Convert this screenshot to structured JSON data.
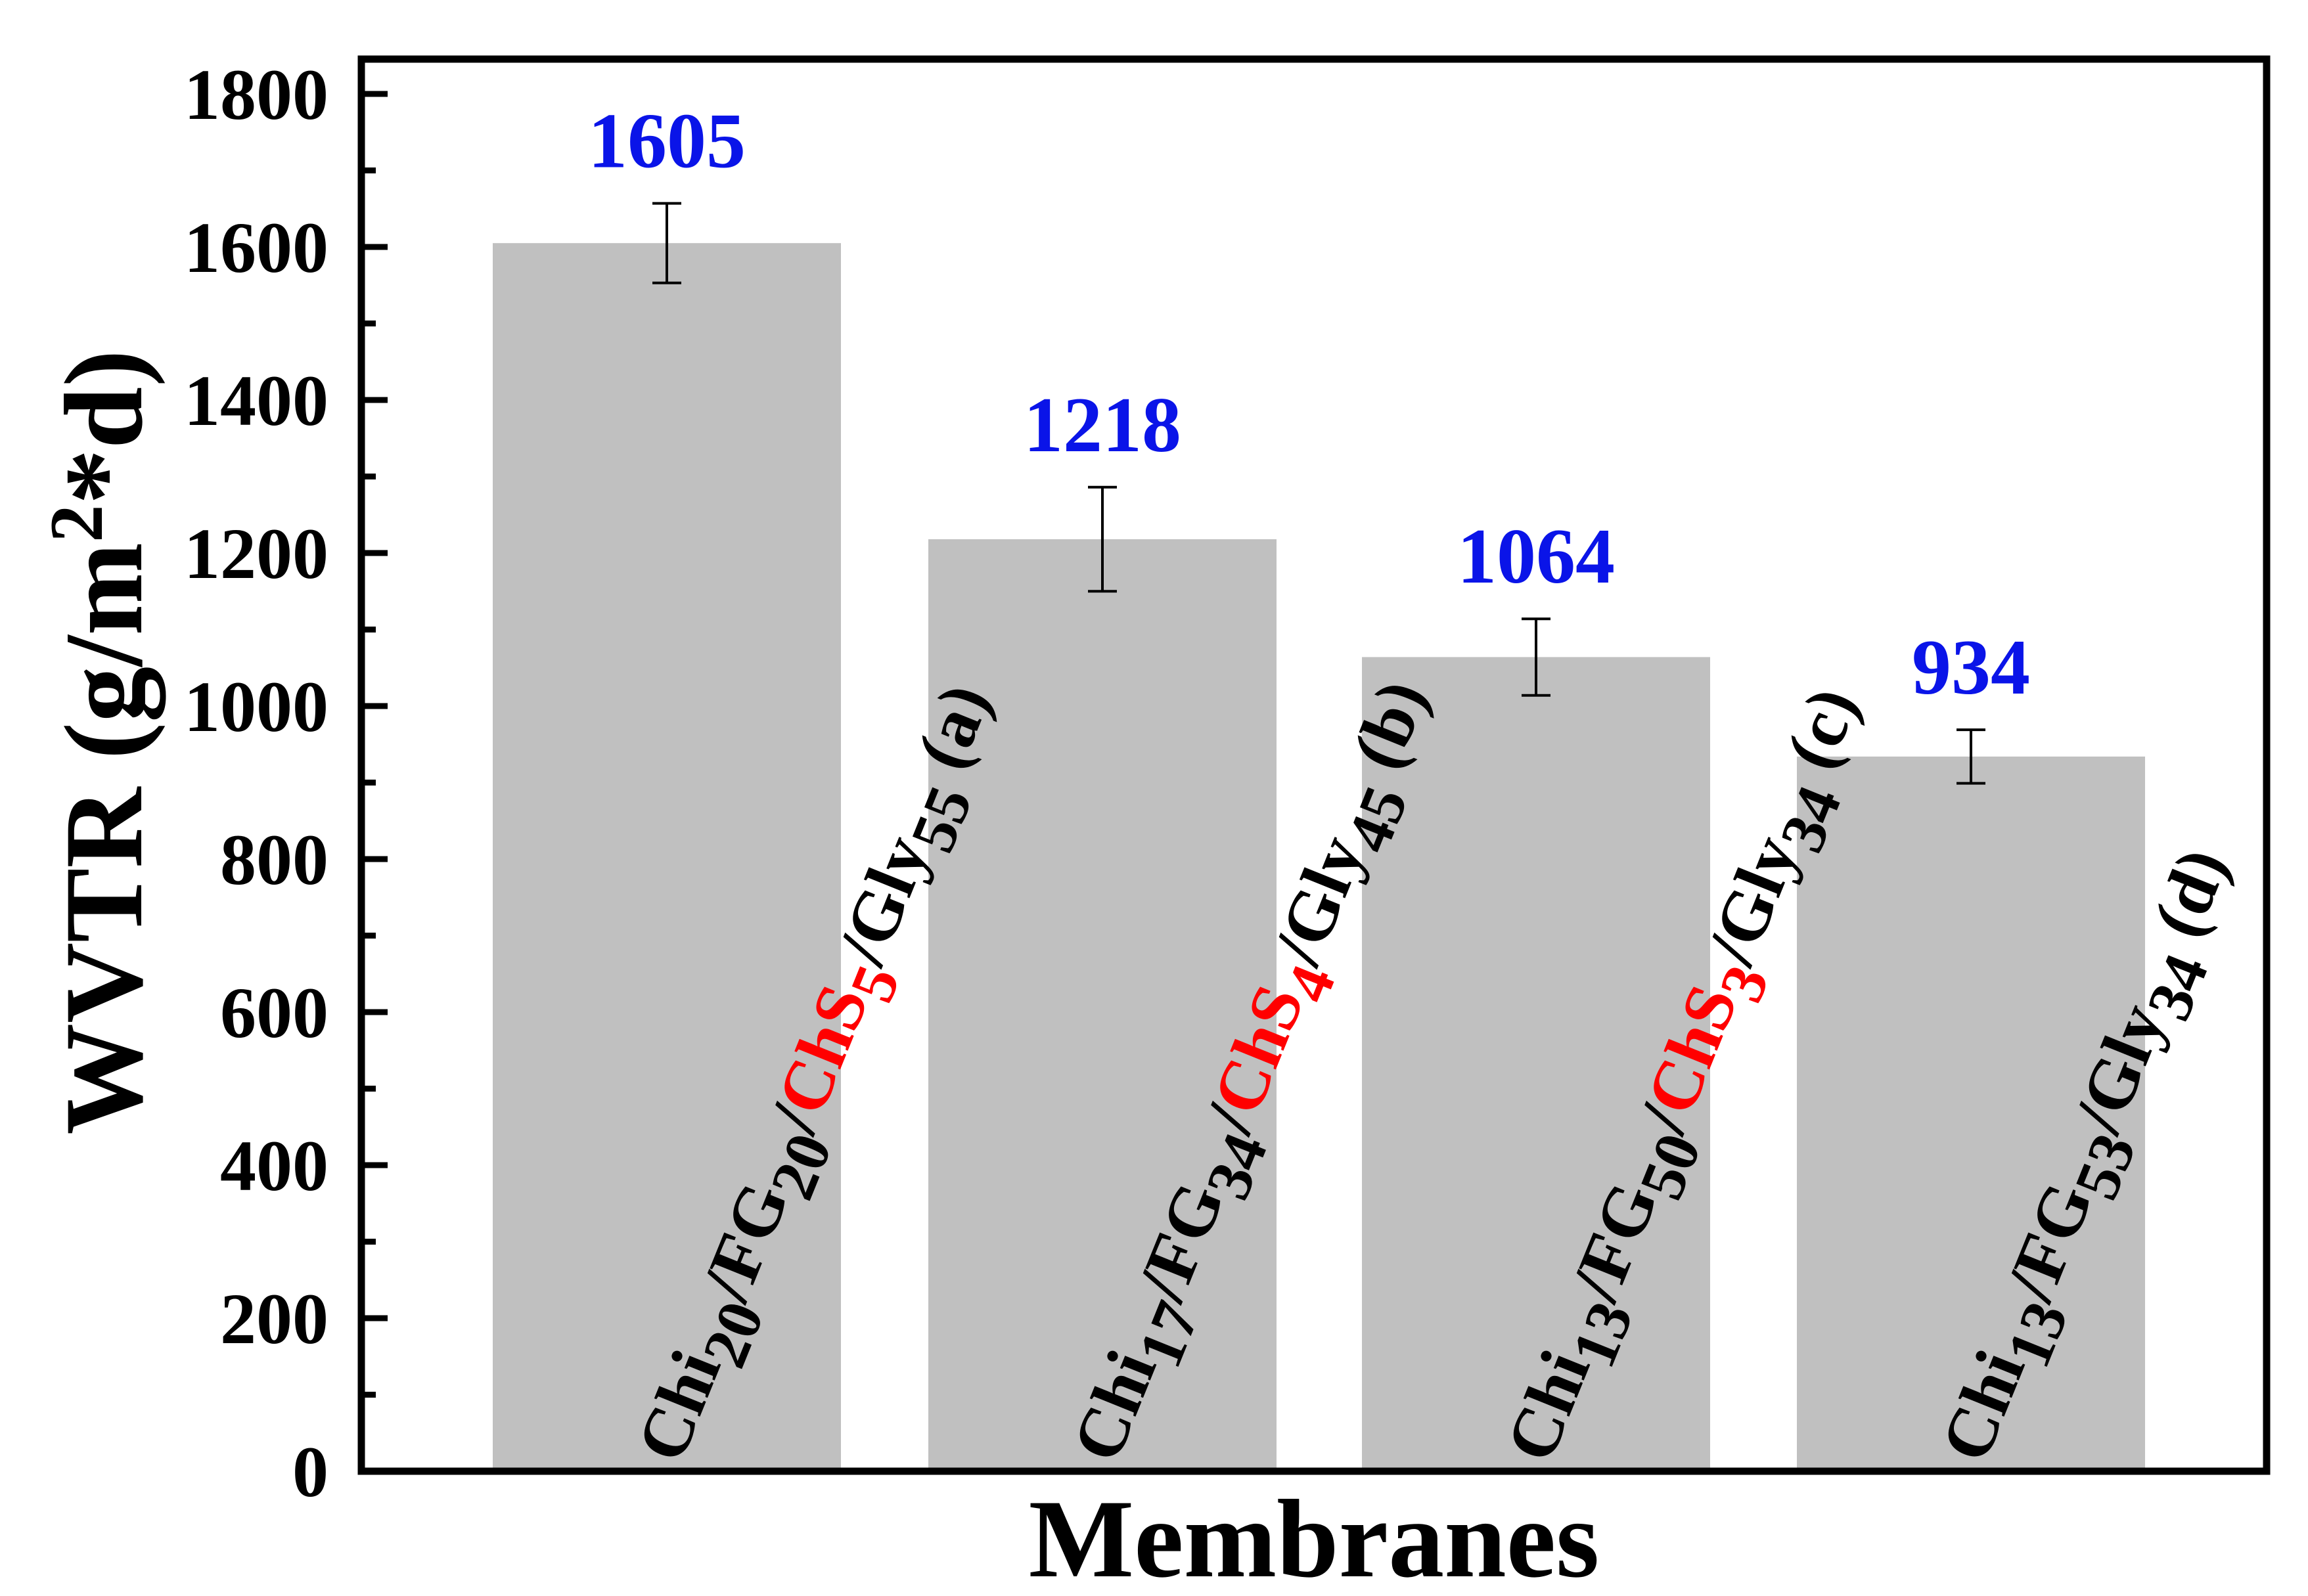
{
  "colors": {
    "bar": "#c0c0c0",
    "value_label": "#0a14e8",
    "highlight": "#ff0000",
    "axis": "#000000"
  },
  "chart_data": {
    "type": "bar",
    "title": "",
    "xlabel": "Membranes",
    "ylabel": {
      "main": "WVTR (g/m",
      "sup": "2",
      "tail": "*d)"
    },
    "ylim": [
      0,
      1800
    ],
    "yticks": [
      0,
      200,
      400,
      600,
      800,
      1000,
      1200,
      1400,
      1600,
      1800
    ],
    "grid": false,
    "legend": "none",
    "values": [
      1605,
      1218,
      1064,
      934
    ],
    "errors": [
      52,
      68,
      50,
      35
    ],
    "value_labels": [
      "1605",
      "1218",
      "1064",
      "934"
    ],
    "categories": [
      {
        "name": "Chi20/FG20/ChS5/Gly55 (a)",
        "parts": [
          {
            "t": "Chi"
          },
          {
            "t": "20",
            "sub": true
          },
          {
            "t": "/FG"
          },
          {
            "t": "20",
            "sub": true
          },
          {
            "t": "/"
          },
          {
            "t": "ChS",
            "hl": true
          },
          {
            "t": "5",
            "sub": true,
            "hl": true
          },
          {
            "t": "/Gly"
          },
          {
            "t": "55",
            "sub": true
          },
          {
            "t": " (a)"
          }
        ]
      },
      {
        "name": "Chi17/FG34/ChS4/Gly45 (b)",
        "parts": [
          {
            "t": "Chi"
          },
          {
            "t": "17",
            "sub": true
          },
          {
            "t": "/FG"
          },
          {
            "t": "34",
            "sub": true
          },
          {
            "t": "/"
          },
          {
            "t": "ChS",
            "hl": true
          },
          {
            "t": "4",
            "sub": true,
            "hl": true
          },
          {
            "t": "/Gly"
          },
          {
            "t": "45",
            "sub": true
          },
          {
            "t": " (b)"
          }
        ]
      },
      {
        "name": "Chi13/FG50/ChS3/Gly34 (c)",
        "parts": [
          {
            "t": "Chi"
          },
          {
            "t": "13",
            "sub": true
          },
          {
            "t": "/FG"
          },
          {
            "t": "50",
            "sub": true
          },
          {
            "t": "/"
          },
          {
            "t": "ChS",
            "hl": true
          },
          {
            "t": "3",
            "sub": true,
            "hl": true
          },
          {
            "t": "/Gly"
          },
          {
            "t": "34",
            "sub": true
          },
          {
            "t": " (c)"
          }
        ]
      },
      {
        "name": "Chi13/FG53/Gly34 (d)",
        "parts": [
          {
            "t": "Chi"
          },
          {
            "t": "13",
            "sub": true
          },
          {
            "t": "/FG"
          },
          {
            "t": "53",
            "sub": true
          },
          {
            "t": "/Gly"
          },
          {
            "t": "34",
            "sub": true
          },
          {
            "t": " (d)"
          }
        ]
      }
    ]
  }
}
